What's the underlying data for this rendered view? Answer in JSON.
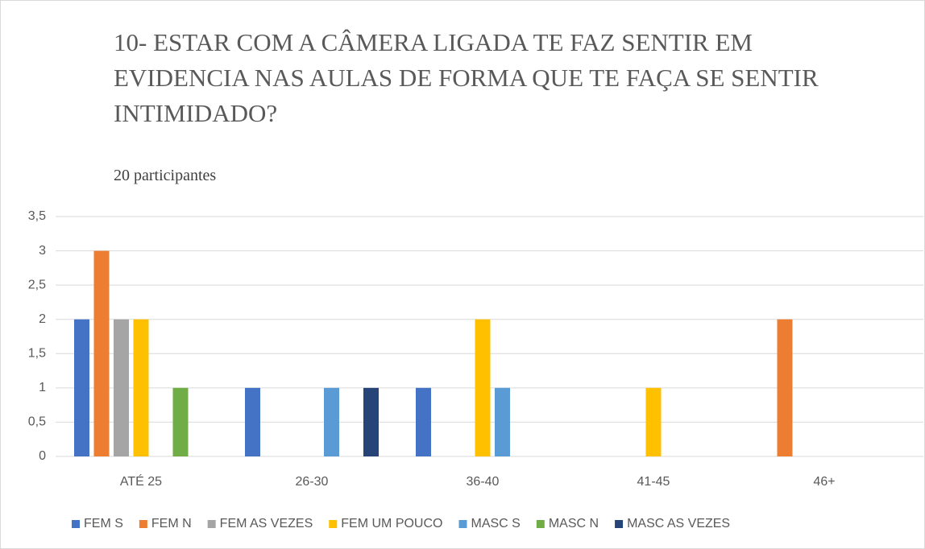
{
  "chart_data": {
    "type": "bar",
    "title": "10- ESTAR COM A CÂMERA LIGADA TE FAZ SENTIR EM EVIDENCIA NAS AULAS DE FORMA QUE TE FAÇA SE SENTIR INTIMIDADO?",
    "subtitle": "20 participantes",
    "categories": [
      "ATÉ 25",
      "26-30",
      "36-40",
      "41-45",
      "46+"
    ],
    "series": [
      {
        "name": "FEM S",
        "color": "#4472c4",
        "values": [
          2,
          1,
          1,
          0,
          0
        ]
      },
      {
        "name": "FEM N",
        "color": "#ed7d31",
        "values": [
          3,
          0,
          0,
          0,
          2
        ]
      },
      {
        "name": "FEM AS VEZES",
        "color": "#a5a5a5",
        "values": [
          2,
          0,
          0,
          0,
          0
        ]
      },
      {
        "name": "FEM UM POUCO",
        "color": "#ffc000",
        "values": [
          2,
          0,
          2,
          1,
          0
        ]
      },
      {
        "name": "MASC S",
        "color": "#5b9bd5",
        "values": [
          0,
          1,
          1,
          0,
          0
        ]
      },
      {
        "name": "MASC N",
        "color": "#70ad47",
        "values": [
          1,
          0,
          0,
          0,
          0
        ]
      },
      {
        "name": "MASC AS VEZES",
        "color": "#264478",
        "values": [
          0,
          1,
          0,
          0,
          0
        ]
      }
    ],
    "ylim": [
      0,
      3.5
    ],
    "yticks": [
      0,
      {
        "value": 0.5,
        "label": "0,5"
      },
      1,
      {
        "value": 1.5,
        "label": "1,5"
      },
      2,
      {
        "value": 2.5,
        "label": "2,5"
      },
      3,
      {
        "value": 3.5,
        "label": "3,5"
      }
    ],
    "grid": true,
    "legend": "bottom"
  }
}
